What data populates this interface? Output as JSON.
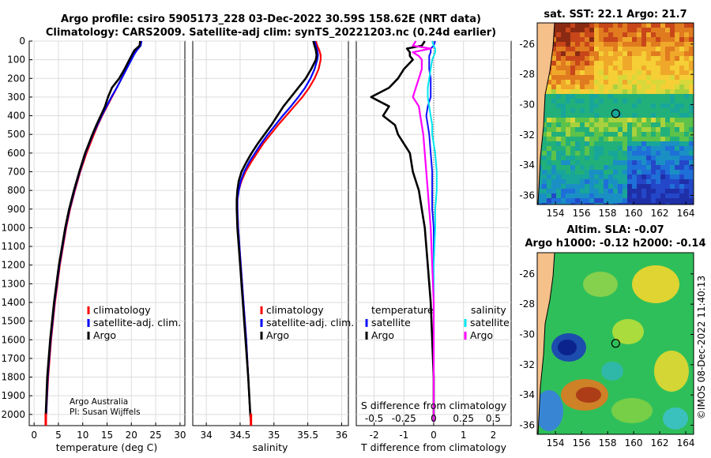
{
  "figure": {
    "title_line1": "Argo profile: csiro 5905173_228 03-Dec-2022 30.59S 158.62E (NRT data)",
    "title_line2": "Climatology: CARS2009. Satellite-adj clim: synTS_20221203.nc (0.24d earlier)",
    "credit_line1": "Argo Australia",
    "credit_line2": "PI: Susan Wijffels",
    "timestamp": "©IMOS 08-Dec-2022 11:40:13"
  },
  "colors": {
    "climatology": "#ff0000",
    "satellite_adj": "#0000ff",
    "argo": "#000000",
    "temp_satellite": "#1010ff",
    "sal_satellite": "#00e5ee",
    "sal_argo": "#ff00ff"
  },
  "legend": {
    "climatology": "climatology",
    "satellite_adj": "satellite-adj. clim.",
    "argo": "Argo",
    "temperature_head": "temperature",
    "salinity_head": "salinity",
    "satellite": "satellite",
    "argo_short": "Argo"
  },
  "chart_data": [
    {
      "type": "line",
      "id": "temperature_profile",
      "xlabel": "temperature (deg C)",
      "ylabel": "",
      "xlim": [
        -1,
        31
      ],
      "ylim": [
        2060,
        0
      ],
      "x_ticks": [
        0,
        5,
        10,
        15,
        20,
        25,
        30
      ],
      "y_ticks": [
        0,
        100,
        200,
        300,
        400,
        500,
        600,
        700,
        800,
        900,
        1000,
        1100,
        1200,
        1300,
        1400,
        1500,
        1600,
        1700,
        1800,
        1900,
        2000
      ],
      "grid": true,
      "legend_position": "lower-right",
      "depth": [
        0,
        25,
        50,
        75,
        100,
        150,
        200,
        250,
        300,
        350,
        400,
        450,
        500,
        600,
        700,
        800,
        900,
        1000,
        1200,
        1400,
        1600,
        1800,
        2000,
        2040
      ],
      "series": [
        {
          "name": "climatology",
          "values": [
            22.0,
            21.8,
            21.0,
            20.4,
            19.9,
            19.0,
            18.0,
            17.0,
            16.0,
            15.0,
            14.0,
            13.1,
            12.3,
            10.8,
            9.5,
            8.4,
            7.4,
            6.6,
            5.3,
            4.3,
            3.5,
            2.9,
            2.5,
            2.4
          ]
        },
        {
          "name": "satellite-adj. clim.",
          "values": [
            22.1,
            21.9,
            21.1,
            20.5,
            20.0,
            19.0,
            18.0,
            17.0,
            15.9,
            14.9,
            13.9,
            13.0,
            12.1,
            10.6,
            9.4,
            8.3,
            7.3,
            6.5,
            5.2,
            4.2,
            3.4,
            2.8,
            2.5,
            2.4
          ]
        },
        {
          "name": "Argo",
          "values": [
            21.8,
            21.7,
            20.6,
            20.1,
            19.6,
            18.6,
            17.5,
            16.0,
            15.2,
            14.6,
            13.7,
            12.8,
            12.0,
            10.5,
            9.3,
            8.2,
            7.2,
            6.4,
            5.1,
            4.1,
            3.3,
            2.7,
            2.4,
            2.4
          ]
        }
      ]
    },
    {
      "type": "line",
      "id": "salinity_profile",
      "xlabel": "salinity",
      "xlim": [
        33.8,
        36.1
      ],
      "ylim": [
        2060,
        0
      ],
      "x_ticks": [
        34,
        34.5,
        35,
        35.5,
        36
      ],
      "grid": true,
      "legend_position": "lower-right",
      "depth": [
        0,
        25,
        50,
        75,
        100,
        150,
        200,
        250,
        300,
        350,
        400,
        450,
        500,
        550,
        600,
        650,
        700,
        750,
        800,
        850,
        900,
        1000,
        1200,
        1400,
        1600,
        1800,
        2000,
        2040
      ],
      "series": [
        {
          "name": "climatology",
          "values": [
            35.62,
            35.64,
            35.67,
            35.69,
            35.69,
            35.66,
            35.6,
            35.52,
            35.42,
            35.3,
            35.18,
            35.06,
            34.95,
            34.84,
            34.75,
            34.66,
            34.58,
            34.52,
            34.48,
            34.46,
            34.46,
            34.47,
            34.51,
            34.55,
            34.59,
            34.62,
            34.65,
            34.66
          ]
        },
        {
          "name": "satellite-adj. clim.",
          "values": [
            35.6,
            35.62,
            35.64,
            35.65,
            35.64,
            35.6,
            35.54,
            35.46,
            35.36,
            35.25,
            35.13,
            35.02,
            34.91,
            34.81,
            34.72,
            34.63,
            34.56,
            34.51,
            34.48,
            34.46,
            34.46,
            34.47,
            34.51,
            34.55,
            34.59,
            34.62,
            34.65,
            34.66
          ]
        },
        {
          "name": "Argo",
          "values": [
            35.58,
            35.6,
            35.62,
            35.63,
            35.62,
            35.55,
            35.47,
            35.36,
            35.25,
            35.14,
            35.05,
            34.96,
            34.86,
            34.76,
            34.67,
            34.59,
            34.52,
            34.48,
            34.46,
            34.45,
            34.45,
            34.46,
            34.5,
            34.54,
            34.58,
            34.62,
            34.65,
            34.66
          ]
        }
      ]
    },
    {
      "type": "line",
      "id": "difference_profile",
      "xlabel": "T difference from climatology",
      "top_xlabel": "S difference from climatology",
      "xlim": [
        -2.6,
        2.6
      ],
      "ylim": [
        2060,
        0
      ],
      "x_ticks": [
        -2,
        -1,
        0,
        1,
        2
      ],
      "x_tick_labels": [
        "-2",
        "-1",
        "0",
        "1",
        "2"
      ],
      "s_tick_labels": [
        "-0.5",
        "-0.25",
        "0",
        "0.25",
        "0.5"
      ],
      "s_tick_positions": [
        -2,
        -1,
        0,
        1,
        2
      ],
      "grid": true,
      "depth": [
        0,
        25,
        40,
        60,
        80,
        100,
        150,
        200,
        250,
        300,
        350,
        400,
        450,
        500,
        600,
        700,
        800,
        900,
        1000,
        1200,
        1400,
        1600,
        1800,
        2000,
        2040
      ],
      "series": [
        {
          "name": "temperature satellite",
          "values": [
            0.05,
            0.0,
            -0.1,
            -0.1,
            -0.15,
            -0.15,
            -0.15,
            -0.1,
            -0.1,
            -0.1,
            -0.2,
            -0.25,
            -0.2,
            -0.15,
            -0.1,
            -0.05,
            -0.05,
            -0.05,
            0.0,
            0.0,
            0.0,
            0.0,
            0.0,
            0.0,
            0.0
          ]
        },
        {
          "name": "temperature Argo",
          "values": [
            -0.3,
            -0.4,
            -0.9,
            -0.8,
            -0.8,
            -0.7,
            -1.0,
            -1.2,
            -1.5,
            -2.1,
            -1.5,
            -1.7,
            -1.3,
            -1.2,
            -0.8,
            -0.7,
            -0.5,
            -0.4,
            -0.3,
            -0.2,
            -0.1,
            -0.05,
            0.0,
            0.0,
            0.0
          ]
        },
        {
          "name": "salinity satellite",
          "values": [
            -0.05,
            0.0,
            0.05,
            0.05,
            0.0,
            -0.05,
            -0.1,
            -0.15,
            -0.2,
            -0.2,
            -0.15,
            -0.1,
            -0.05,
            -0.05,
            0.05,
            0.1,
            0.1,
            0.05,
            0.05,
            0.0,
            0.0,
            0.0,
            0.0,
            0.0,
            0.0
          ]
        },
        {
          "name": "salinity Argo",
          "values": [
            -0.6,
            -0.7,
            -0.1,
            -0.7,
            -0.5,
            -0.4,
            -0.4,
            -0.5,
            -0.6,
            -0.7,
            -0.5,
            -0.45,
            -0.4,
            -0.35,
            -0.3,
            -0.25,
            -0.2,
            -0.15,
            -0.1,
            -0.05,
            0.0,
            0.0,
            0.0,
            0.0,
            0.0
          ]
        }
      ]
    },
    {
      "type": "heatmap",
      "id": "sst_map",
      "title": "sat. SST: 22.1 Argo: 21.7",
      "x_ticks": [
        154,
        156,
        158,
        160,
        162,
        164
      ],
      "y_ticks": [
        -26,
        -28,
        -30,
        -32,
        -34,
        -36
      ],
      "y_tick_labels": [
        "-26",
        "-28",
        "-30",
        "-32",
        "-34",
        "-36"
      ],
      "xlim": [
        152.6,
        164.6
      ],
      "ylim": [
        -36.6,
        -24.6
      ],
      "float_position": [
        158.62,
        -30.59
      ]
    },
    {
      "type": "heatmap",
      "id": "sla_map",
      "title_line1": "Altim. SLA: -0.07",
      "title_line2": "Argo h1000: -0.12 h2000: -0.14",
      "x_ticks": [
        154,
        156,
        158,
        160,
        162,
        164
      ],
      "y_ticks": [
        -26,
        -28,
        -30,
        -32,
        -34,
        -36
      ],
      "y_tick_labels": [
        "-26",
        "-28",
        "-30",
        "-32",
        "-34",
        "-36"
      ],
      "xlim": [
        152.6,
        164.6
      ],
      "ylim": [
        -36.6,
        -24.6
      ],
      "float_position": [
        158.62,
        -30.59
      ]
    }
  ]
}
